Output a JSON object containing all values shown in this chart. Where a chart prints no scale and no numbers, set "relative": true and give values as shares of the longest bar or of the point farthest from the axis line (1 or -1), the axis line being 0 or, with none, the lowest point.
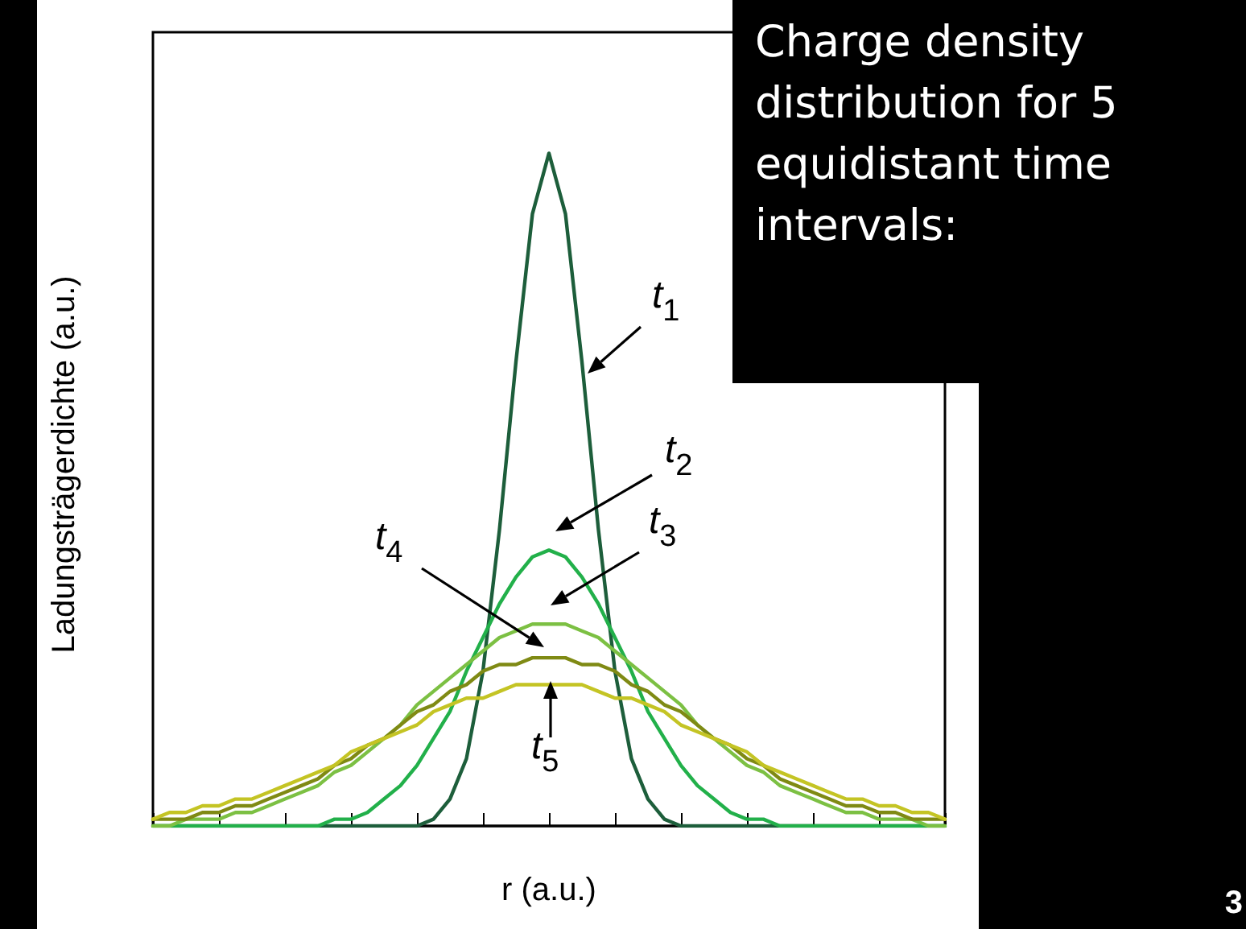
{
  "chart_data": {
    "type": "line",
    "relative": true,
    "xlabel": "r (a.u.)",
    "ylabel": "Ladungsträgerdichte (a.u.)",
    "annotations": [
      "t$_{1}$",
      "t$_{2}$",
      "t$_{3}$",
      "t$_{4}$",
      "t$_{5}$",
      "Charge density distribution for 5 equidistant time intervals:",
      "3"
    ],
    "categories": [
      null,
      null,
      null,
      null,
      null,
      null,
      null,
      null,
      null,
      null,
      null,
      null,
      null,
      null,
      null,
      null,
      null,
      null,
      null,
      null,
      null,
      null,
      null,
      null,
      null,
      null,
      null,
      null,
      null,
      null,
      null,
      null,
      null,
      null,
      null,
      null,
      null,
      null,
      null,
      null,
      null,
      null,
      null,
      null,
      null,
      null,
      null,
      null,
      null
    ],
    "marker": "none",
    "line_style": "solid",
    "grid": false,
    "series": [
      {
        "color": "#1d5e3b",
        "values": [
          0,
          0,
          0,
          0,
          0,
          0,
          0,
          0,
          0,
          0,
          0,
          0,
          0,
          0,
          0,
          0,
          0,
          0.01,
          0.04,
          0.1,
          0.23,
          0.44,
          0.69,
          0.91,
          1,
          0.91,
          0.69,
          0.44,
          0.23,
          0.1,
          0.04,
          0.01,
          0,
          0,
          0,
          0,
          0,
          0,
          0,
          0,
          0,
          0,
          0,
          0,
          0,
          0,
          0,
          0,
          0
        ]
      },
      {
        "color": "#22b04a",
        "values": [
          0,
          0,
          0,
          0,
          0,
          0,
          0,
          0,
          0,
          0,
          0,
          0.01,
          0.01,
          0.02,
          0.04,
          0.06,
          0.09,
          0.13,
          0.17,
          0.23,
          0.28,
          0.33,
          0.37,
          0.4,
          0.41,
          0.4,
          0.37,
          0.33,
          0.28,
          0.23,
          0.17,
          0.13,
          0.09,
          0.06,
          0.04,
          0.02,
          0.01,
          0.01,
          0,
          0,
          0,
          0,
          0,
          0,
          0,
          0,
          0,
          0,
          0
        ]
      },
      {
        "color": "#7cc043",
        "values": [
          0,
          0,
          0.01,
          0.01,
          0.01,
          0.02,
          0.02,
          0.03,
          0.04,
          0.05,
          0.06,
          0.08,
          0.09,
          0.11,
          0.13,
          0.15,
          0.18,
          0.2,
          0.22,
          0.24,
          0.26,
          0.28,
          0.29,
          0.3,
          0.3,
          0.3,
          0.29,
          0.28,
          0.26,
          0.24,
          0.22,
          0.2,
          0.18,
          0.15,
          0.13,
          0.11,
          0.09,
          0.08,
          0.06,
          0.05,
          0.04,
          0.03,
          0.02,
          0.02,
          0.01,
          0.01,
          0.01,
          0,
          0
        ]
      },
      {
        "color": "#7f8a14",
        "values": [
          0.01,
          0.01,
          0.01,
          0.02,
          0.02,
          0.03,
          0.03,
          0.04,
          0.05,
          0.06,
          0.07,
          0.09,
          0.1,
          0.12,
          0.13,
          0.15,
          0.17,
          0.18,
          0.2,
          0.21,
          0.23,
          0.24,
          0.24,
          0.25,
          0.25,
          0.25,
          0.24,
          0.24,
          0.23,
          0.21,
          0.2,
          0.18,
          0.17,
          0.15,
          0.13,
          0.12,
          0.1,
          0.09,
          0.07,
          0.06,
          0.05,
          0.04,
          0.03,
          0.03,
          0.02,
          0.02,
          0.01,
          0.01,
          0.01
        ]
      },
      {
        "color": "#c4c424",
        "values": [
          0.01,
          0.02,
          0.02,
          0.03,
          0.03,
          0.04,
          0.04,
          0.05,
          0.06,
          0.07,
          0.08,
          0.09,
          0.11,
          0.12,
          0.13,
          0.14,
          0.15,
          0.17,
          0.18,
          0.19,
          0.19,
          0.2,
          0.21,
          0.21,
          0.21,
          0.21,
          0.21,
          0.2,
          0.19,
          0.19,
          0.18,
          0.17,
          0.15,
          0.14,
          0.13,
          0.12,
          0.11,
          0.09,
          0.08,
          0.07,
          0.06,
          0.05,
          0.04,
          0.04,
          0.03,
          0.03,
          0.02,
          0.02,
          0.01
        ]
      }
    ]
  }
}
